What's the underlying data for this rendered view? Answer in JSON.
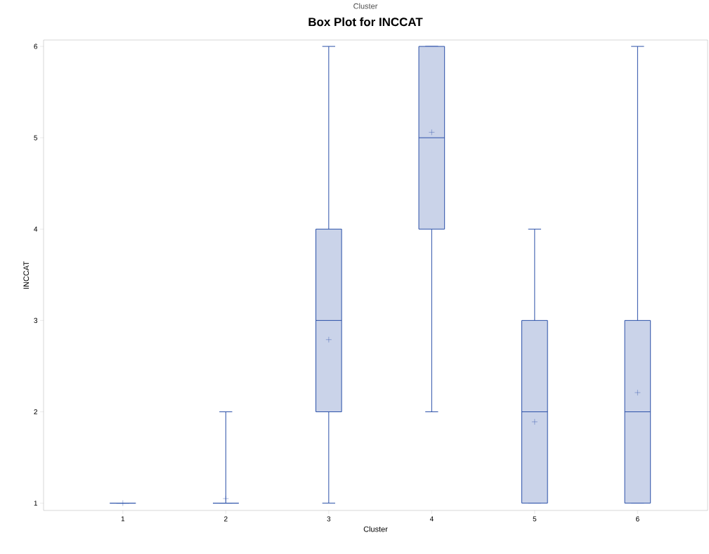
{
  "chart_data": {
    "type": "box",
    "title": "Box Plot for INCCAT",
    "subtitle": "Cluster",
    "xlabel": "Cluster",
    "ylabel": "INCCAT",
    "categories": [
      "1",
      "2",
      "3",
      "4",
      "5",
      "6"
    ],
    "ylim": [
      0.92,
      6.07
    ],
    "yticks": [
      1,
      2,
      3,
      4,
      5,
      6
    ],
    "grid": false,
    "series": [
      {
        "color": "#2a4fa8",
        "boxes": [
          {
            "low": 1,
            "q1": 1,
            "median": 1,
            "q3": 1,
            "high": 1,
            "mean": 1
          },
          {
            "low": 1,
            "q1": 1,
            "median": 1,
            "q3": 1,
            "high": 2,
            "mean": 1.05
          },
          {
            "low": 1,
            "q1": 2,
            "median": 3,
            "q3": 4,
            "high": 6,
            "mean": 2.79
          },
          {
            "low": 2,
            "q1": 4,
            "median": 5,
            "q3": 6,
            "high": 6,
            "mean": 5.06
          },
          {
            "low": 1,
            "q1": 1,
            "median": 2,
            "q3": 3,
            "high": 4,
            "mean": 1.89
          },
          {
            "low": 1,
            "q1": 1,
            "median": 2,
            "q3": 3,
            "high": 6,
            "mean": 2.21
          }
        ]
      }
    ]
  }
}
